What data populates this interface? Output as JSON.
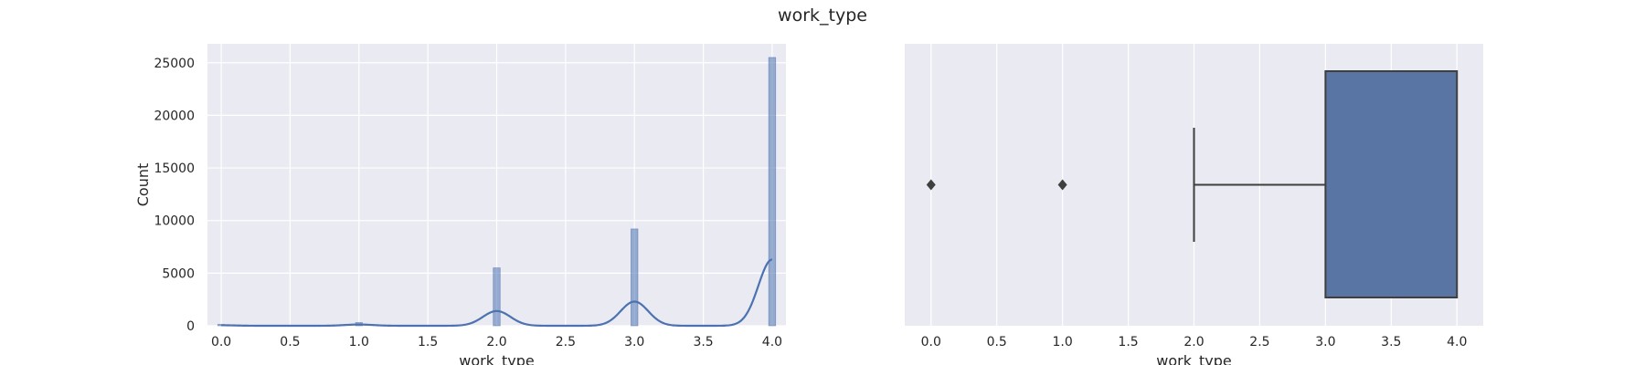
{
  "figure": {
    "title": "work_type",
    "background": "#ffffff",
    "axes_facecolor": "#eaeaf2",
    "grid_color": "#ffffff",
    "series_color": "#4c72b0",
    "box_color": "#5975a4",
    "box_line_color": "#3f3f3f"
  },
  "chart_data": [
    {
      "type": "histogram",
      "xlabel": "work_type",
      "ylabel": "Count",
      "xlim": [
        -0.1,
        4.1
      ],
      "ylim": [
        0,
        26800
      ],
      "grid": true,
      "xticks": [
        0.0,
        0.5,
        1.0,
        1.5,
        2.0,
        2.5,
        3.0,
        3.5,
        4.0
      ],
      "xtick_labels": [
        "0.0",
        "0.5",
        "1.0",
        "1.5",
        "2.0",
        "2.5",
        "3.0",
        "3.5",
        "4.0"
      ],
      "yticks": [
        0,
        5000,
        10000,
        15000,
        20000,
        25000
      ],
      "ytick_labels": [
        "0",
        "5000",
        "10000",
        "15000",
        "20000",
        "25000"
      ],
      "bars": [
        {
          "x": 0.0,
          "count": 130
        },
        {
          "x": 1.0,
          "count": 300
        },
        {
          "x": 2.0,
          "count": 5500
        },
        {
          "x": 3.0,
          "count": 9200
        },
        {
          "x": 4.0,
          "count": 25500
        }
      ],
      "kde": {
        "peaks": [
          {
            "x": 0.0,
            "height": 50
          },
          {
            "x": 1.0,
            "height": 120
          },
          {
            "x": 2.0,
            "height": 1400
          },
          {
            "x": 3.0,
            "height": 2300
          },
          {
            "x": 4.0,
            "height": 6300
          }
        ],
        "bandwidth": 0.1
      }
    },
    {
      "type": "box",
      "xlabel": "work_type",
      "xlim": [
        -0.2,
        4.2
      ],
      "grid": true,
      "xticks": [
        0.0,
        0.5,
        1.0,
        1.5,
        2.0,
        2.5,
        3.0,
        3.5,
        4.0
      ],
      "xtick_labels": [
        "0.0",
        "0.5",
        "1.0",
        "1.5",
        "2.0",
        "2.5",
        "3.0",
        "3.5",
        "4.0"
      ],
      "box": {
        "whisker_low": 2.0,
        "q1": 3.0,
        "median": 4.0,
        "q3": 4.0,
        "whisker_high": 4.0
      },
      "outliers": [
        0.0,
        1.0
      ]
    }
  ]
}
